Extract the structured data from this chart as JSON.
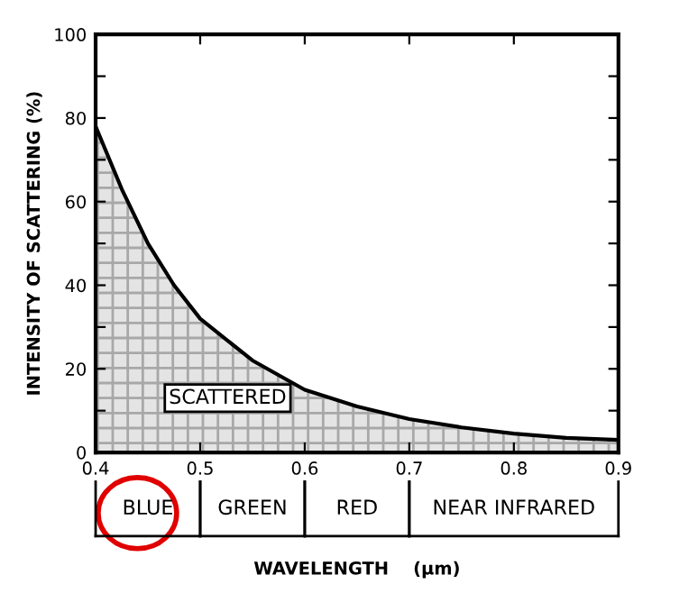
{
  "chart_data": {
    "type": "area",
    "xlabel": "WAVELENGTH    (μm)",
    "ylabel": "INTENSITY OF SCATTERING (%)",
    "x": [
      0.4,
      0.425,
      0.45,
      0.475,
      0.5,
      0.55,
      0.6,
      0.65,
      0.7,
      0.75,
      0.8,
      0.85,
      0.9
    ],
    "series": [
      {
        "color": "#a8a8a8",
        "values": [
          78,
          63,
          50,
          40,
          32,
          22,
          15,
          11,
          8,
          6,
          4.5,
          3.5,
          3
        ]
      }
    ],
    "xlim": [
      0.4,
      0.9
    ],
    "xticks": [
      0.4,
      0.5,
      0.6,
      0.7,
      0.8,
      0.9
    ],
    "ylim": [
      0,
      100
    ],
    "yticks": [
      0,
      {
        "value": 10,
        "label": null
      },
      20,
      {
        "value": 30,
        "label": null
      },
      40,
      {
        "value": 50,
        "label": null
      },
      60,
      {
        "value": 70,
        "label": null
      },
      80,
      {
        "value": 90,
        "label": null
      },
      100
    ],
    "annotations": [
      "SCATTERED",
      "BLUE",
      "GREEN",
      "RED",
      "NEAR INFRARED"
    ],
    "grid": false
  }
}
